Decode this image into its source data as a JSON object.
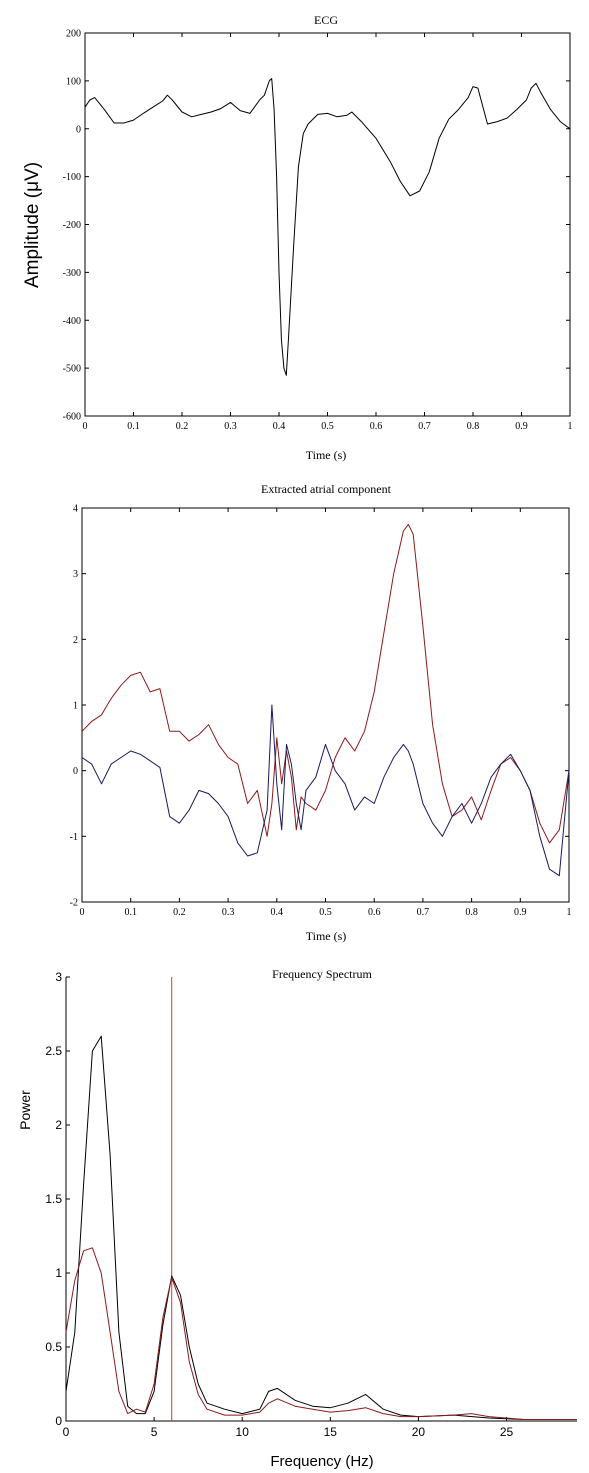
{
  "chart_data": [
    {
      "type": "line",
      "title": "ECG",
      "xlabel": "Time (s)",
      "ylabel": "Amplitude (μV)",
      "xlim": [
        0,
        1
      ],
      "ylim": [
        -600,
        200
      ],
      "xticks": [
        0,
        0.1,
        0.2,
        0.3,
        0.4,
        0.5,
        0.6,
        0.7,
        0.8,
        0.9,
        1
      ],
      "yticks": [
        200,
        100,
        0,
        -100,
        -200,
        -300,
        -400,
        -500,
        -600
      ],
      "grid": false,
      "series": [
        {
          "color": "#000000",
          "x": [
            0,
            0.01,
            0.02,
            0.04,
            0.06,
            0.08,
            0.1,
            0.12,
            0.14,
            0.16,
            0.17,
            0.18,
            0.2,
            0.22,
            0.24,
            0.26,
            0.28,
            0.3,
            0.32,
            0.34,
            0.36,
            0.37,
            0.38,
            0.385,
            0.39,
            0.395,
            0.4,
            0.405,
            0.41,
            0.415,
            0.42,
            0.43,
            0.44,
            0.45,
            0.46,
            0.48,
            0.5,
            0.52,
            0.54,
            0.55,
            0.57,
            0.6,
            0.63,
            0.65,
            0.67,
            0.69,
            0.71,
            0.73,
            0.75,
            0.77,
            0.79,
            0.8,
            0.81,
            0.83,
            0.85,
            0.87,
            0.89,
            0.91,
            0.92,
            0.93,
            0.94,
            0.96,
            0.98,
            1
          ],
          "y": [
            45,
            60,
            65,
            40,
            12,
            12,
            18,
            32,
            45,
            58,
            70,
            60,
            35,
            25,
            30,
            35,
            42,
            55,
            38,
            32,
            60,
            70,
            100,
            105,
            40,
            -100,
            -300,
            -440,
            -500,
            -515,
            -430,
            -250,
            -80,
            -10,
            10,
            30,
            32,
            25,
            28,
            35,
            15,
            -20,
            -70,
            -110,
            -140,
            -130,
            -90,
            -20,
            20,
            40,
            65,
            88,
            85,
            10,
            15,
            22,
            40,
            60,
            85,
            95,
            75,
            40,
            15,
            0
          ]
        }
      ]
    },
    {
      "type": "line",
      "title": "Extracted atrial component",
      "xlabel": "Time (s)",
      "ylabel": "",
      "xlim": [
        0,
        1
      ],
      "ylim": [
        -2,
        4
      ],
      "xticks": [
        0,
        0.1,
        0.2,
        0.3,
        0.4,
        0.5,
        0.6,
        0.7,
        0.8,
        0.9,
        1
      ],
      "yticks": [
        4,
        3,
        2,
        1,
        0,
        -1,
        -2
      ],
      "grid": false,
      "series": [
        {
          "color": "#8B1A1A",
          "x": [
            0,
            0.02,
            0.04,
            0.06,
            0.08,
            0.1,
            0.12,
            0.14,
            0.16,
            0.18,
            0.2,
            0.22,
            0.24,
            0.26,
            0.28,
            0.3,
            0.32,
            0.34,
            0.36,
            0.38,
            0.39,
            0.4,
            0.41,
            0.42,
            0.43,
            0.44,
            0.45,
            0.46,
            0.48,
            0.5,
            0.52,
            0.54,
            0.56,
            0.58,
            0.6,
            0.62,
            0.64,
            0.66,
            0.67,
            0.68,
            0.7,
            0.72,
            0.74,
            0.76,
            0.78,
            0.8,
            0.82,
            0.84,
            0.86,
            0.88,
            0.9,
            0.92,
            0.94,
            0.96,
            0.98,
            1
          ],
          "y": [
            0.6,
            0.75,
            0.85,
            1.1,
            1.3,
            1.45,
            1.5,
            1.2,
            1.25,
            0.6,
            0.6,
            0.45,
            0.55,
            0.7,
            0.4,
            0.2,
            0.1,
            -0.5,
            -0.3,
            -1.0,
            -0.5,
            0.5,
            -0.2,
            0.3,
            -0.1,
            -0.9,
            -0.4,
            -0.5,
            -0.6,
            -0.3,
            0.2,
            0.5,
            0.3,
            0.6,
            1.2,
            2.1,
            3.0,
            3.65,
            3.75,
            3.6,
            2.2,
            0.7,
            -0.2,
            -0.7,
            -0.6,
            -0.4,
            -0.75,
            -0.3,
            0.1,
            0.2,
            0.0,
            -0.3,
            -0.8,
            -1.1,
            -0.9,
            0.0
          ]
        },
        {
          "color": "#1a1a60",
          "x": [
            0,
            0.02,
            0.04,
            0.06,
            0.08,
            0.1,
            0.12,
            0.14,
            0.16,
            0.18,
            0.2,
            0.22,
            0.24,
            0.26,
            0.28,
            0.3,
            0.32,
            0.34,
            0.36,
            0.38,
            0.39,
            0.4,
            0.41,
            0.42,
            0.43,
            0.44,
            0.45,
            0.46,
            0.48,
            0.5,
            0.52,
            0.54,
            0.56,
            0.58,
            0.6,
            0.62,
            0.64,
            0.66,
            0.67,
            0.68,
            0.7,
            0.72,
            0.74,
            0.76,
            0.78,
            0.8,
            0.82,
            0.84,
            0.86,
            0.88,
            0.9,
            0.92,
            0.94,
            0.96,
            0.98,
            1
          ],
          "y": [
            0.2,
            0.1,
            -0.2,
            0.1,
            0.2,
            0.3,
            0.25,
            0.15,
            0.05,
            -0.7,
            -0.8,
            -0.6,
            -0.3,
            -0.35,
            -0.5,
            -0.7,
            -1.1,
            -1.3,
            -1.25,
            -0.6,
            1.0,
            -0.2,
            -0.9,
            0.4,
            0.1,
            -0.5,
            -0.9,
            -0.3,
            -0.1,
            0.4,
            0.0,
            -0.2,
            -0.6,
            -0.4,
            -0.5,
            -0.1,
            0.2,
            0.4,
            0.3,
            0.1,
            -0.5,
            -0.8,
            -1.0,
            -0.7,
            -0.5,
            -0.8,
            -0.5,
            -0.1,
            0.1,
            0.25,
            0.0,
            -0.3,
            -1.0,
            -1.5,
            -1.6,
            0.0
          ]
        }
      ]
    },
    {
      "type": "line",
      "title": "Frequency Spectrum",
      "xlabel": "Frequency (Hz)",
      "ylabel": "Power",
      "xlim": [
        0,
        29
      ],
      "ylim": [
        0,
        3
      ],
      "xticks": [
        0,
        5,
        10,
        15,
        20,
        25
      ],
      "yticks": [
        3,
        2.5,
        2,
        1.5,
        1,
        0.5,
        0
      ],
      "grid": false,
      "vline": {
        "x": 6,
        "color": "#c04040"
      },
      "series": [
        {
          "color": "#000000",
          "x": [
            0,
            0.5,
            1,
            1.5,
            2,
            2.5,
            3,
            3.5,
            4,
            4.5,
            5,
            5.5,
            6,
            6.5,
            7,
            7.5,
            8,
            9,
            10,
            11,
            11.5,
            12,
            13,
            14,
            15,
            16,
            17,
            18,
            19,
            20,
            22,
            24,
            26,
            29
          ],
          "y": [
            0.2,
            0.6,
            1.6,
            2.5,
            2.6,
            1.8,
            0.6,
            0.1,
            0.05,
            0.05,
            0.2,
            0.65,
            0.98,
            0.85,
            0.5,
            0.25,
            0.12,
            0.08,
            0.05,
            0.08,
            0.2,
            0.22,
            0.14,
            0.1,
            0.09,
            0.12,
            0.18,
            0.08,
            0.04,
            0.03,
            0.04,
            0.02,
            0.01,
            0.01
          ]
        },
        {
          "color": "#8B1A1A",
          "x": [
            0,
            0.5,
            1,
            1.5,
            2,
            2.5,
            3,
            3.5,
            4,
            4.5,
            5,
            5.5,
            6,
            6.5,
            7,
            7.5,
            8,
            9,
            10,
            11,
            11.5,
            12,
            13,
            14,
            15,
            16,
            17,
            18,
            19,
            20,
            22,
            23,
            24,
            26,
            29
          ],
          "y": [
            0.6,
            0.95,
            1.15,
            1.17,
            1.0,
            0.6,
            0.2,
            0.05,
            0.08,
            0.06,
            0.25,
            0.7,
            0.97,
            0.8,
            0.4,
            0.18,
            0.08,
            0.04,
            0.04,
            0.06,
            0.12,
            0.15,
            0.1,
            0.08,
            0.06,
            0.07,
            0.09,
            0.05,
            0.03,
            0.03,
            0.04,
            0.05,
            0.03,
            0.01,
            0.01
          ]
        }
      ]
    }
  ]
}
